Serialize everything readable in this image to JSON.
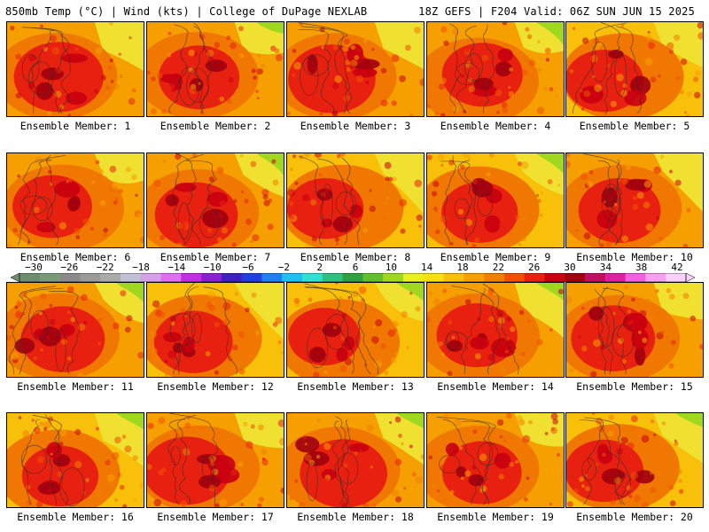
{
  "header": {
    "left_title": "850mb Temp (°C) | Wind (kts) | College of DuPage NEXLAB",
    "right_title": "18Z GEFS | F204 Valid: 06Z SUN JUN 15 2025"
  },
  "members": [
    {
      "label": "Ensemble Member: 1",
      "heat": 0.85
    },
    {
      "label": "Ensemble Member: 2",
      "heat": 0.65
    },
    {
      "label": "Ensemble Member: 3",
      "heat": 0.8
    },
    {
      "label": "Ensemble Member: 4",
      "heat": 0.65
    },
    {
      "label": "Ensemble Member: 5",
      "heat": 0.6
    },
    {
      "label": "Ensemble Member: 6",
      "heat": 0.62
    },
    {
      "label": "Ensemble Member: 7",
      "heat": 0.7
    },
    {
      "label": "Ensemble Member: 8",
      "heat": 0.55
    },
    {
      "label": "Ensemble Member: 9",
      "heat": 0.55
    },
    {
      "label": "Ensemble Member: 10",
      "heat": 0.68
    },
    {
      "label": "Ensemble Member: 11",
      "heat": 0.72
    },
    {
      "label": "Ensemble Member: 12",
      "heat": 0.6
    },
    {
      "label": "Ensemble Member: 13",
      "heat": 0.45
    },
    {
      "label": "Ensemble Member: 14",
      "heat": 0.65
    },
    {
      "label": "Ensemble Member: 15",
      "heat": 0.72
    },
    {
      "label": "Ensemble Member: 16",
      "heat": 0.55
    },
    {
      "label": "Ensemble Member: 17",
      "heat": 0.78
    },
    {
      "label": "Ensemble Member: 18",
      "heat": 0.8
    },
    {
      "label": "Ensemble Member: 19",
      "heat": 0.62
    },
    {
      "label": "Ensemble Member: 20",
      "heat": 0.6
    }
  ],
  "colorbar": {
    "labels": [
      "−30",
      "−26",
      "−22",
      "−18",
      "−14",
      "−10",
      "−6",
      "−2",
      "2",
      "6",
      "10",
      "14",
      "18",
      "22",
      "26",
      "30",
      "34",
      "38",
      "42"
    ],
    "colors": [
      "#6e8c6e",
      "#7a9a7a",
      "#8a8a8a",
      "#9a9a9a",
      "#aaaaaa",
      "#c0c0d8",
      "#d8a0e8",
      "#e070f0",
      "#c030e0",
      "#8a20d0",
      "#4020c0",
      "#2040e0",
      "#2080f0",
      "#20c0f0",
      "#30e0d0",
      "#30c080",
      "#30a040",
      "#60c030",
      "#a0d820",
      "#e8f020",
      "#f8e010",
      "#f8c008",
      "#f8a000",
      "#f08000",
      "#f05000",
      "#e82010",
      "#c80010",
      "#a00010",
      "#c01060",
      "#e020a0",
      "#f060e0",
      "#f8a0f0",
      "#f8d0f8"
    ]
  }
}
